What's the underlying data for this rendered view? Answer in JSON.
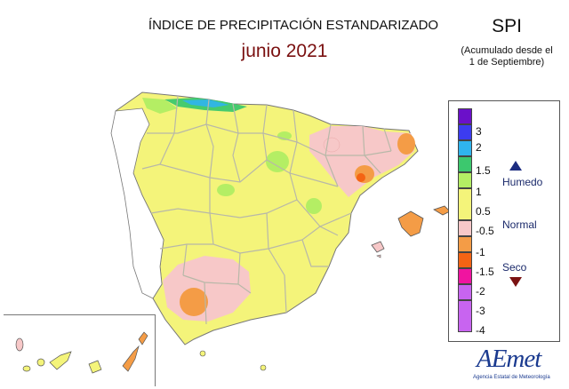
{
  "header": {
    "title": "ÍNDICE DE PRECIPITACIÓN ESTANDARIZADO",
    "subtitle": "junio 2021",
    "index_name": "SPI",
    "index_note_line1": "(Acumulado desde el",
    "index_note_line2": "1 de Septiembre)"
  },
  "legend": {
    "items": [
      {
        "label": "3",
        "color": "#6b10c9"
      },
      {
        "label": "2",
        "color": "#3c3cf0"
      },
      {
        "label": "1.5",
        "color": "#2fb4ee"
      },
      {
        "label": "1",
        "color": "#3cc86e"
      },
      {
        "label": "0.5",
        "color": "#b4ee64"
      },
      {
        "label": "-0.5",
        "color": "#f4f47a"
      },
      {
        "label": "-1",
        "color": "#f7c8c8"
      },
      {
        "label": "-1.5",
        "color": "#f49c46"
      },
      {
        "label": "-2",
        "color": "#f46414"
      },
      {
        "label": "-3",
        "color": "#f014a0"
      },
      {
        "label": "-4",
        "color": "#c864f0"
      }
    ],
    "end_color": "#c864f0",
    "zones": {
      "wet": "Humedo",
      "normal": "Normal",
      "dry": "Seco"
    }
  },
  "logo": {
    "text": "AEmet",
    "sub": "Agencia Estatal de Meteorología"
  },
  "colors": {
    "normal": "#f4f47a",
    "slightly_wet": "#b4ee64",
    "wet": "#3cc86e",
    "slightly_dry": "#f7c8c8",
    "dry": "#f49c46",
    "very_dry": "#f46414",
    "province_border": "#b8b8a8"
  }
}
